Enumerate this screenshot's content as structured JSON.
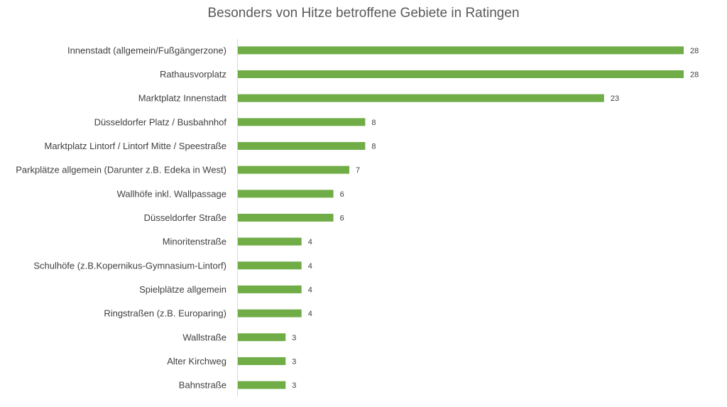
{
  "chart_data": {
    "type": "bar",
    "orientation": "horizontal",
    "title": "Besonders von Hitze betroffene Gebiete in Ratingen",
    "xlabel": "",
    "ylabel": "",
    "xlim": [
      0,
      28
    ],
    "grid": false,
    "legend": "none",
    "bar_color": "#70ad47",
    "categories": [
      "Innenstadt (allgemein/Fußgängerzone)",
      "Rathausvorplatz",
      "Marktplatz Innenstadt",
      "Düsseldorfer Platz / Busbahnhof",
      "Marktplatz Lintorf / Lintorf Mitte / Speestraße",
      "Parkplätze allgemein (Darunter z.B. Edeka in West)",
      "Wallhöfe inkl. Wallpassage",
      "Düsseldorfer Straße",
      "Minoritenstraße",
      "Schulhöfe (z.B.Kopernikus-Gymnasium-Lintorf)",
      "Spielplätze allgemein",
      "Ringstraßen (z.B. Europaring)",
      "Wallstraße",
      "Alter Kirchweg",
      "Bahnstraße"
    ],
    "values": [
      28,
      28,
      23,
      8,
      8,
      7,
      6,
      6,
      4,
      4,
      4,
      4,
      3,
      3,
      3
    ]
  }
}
